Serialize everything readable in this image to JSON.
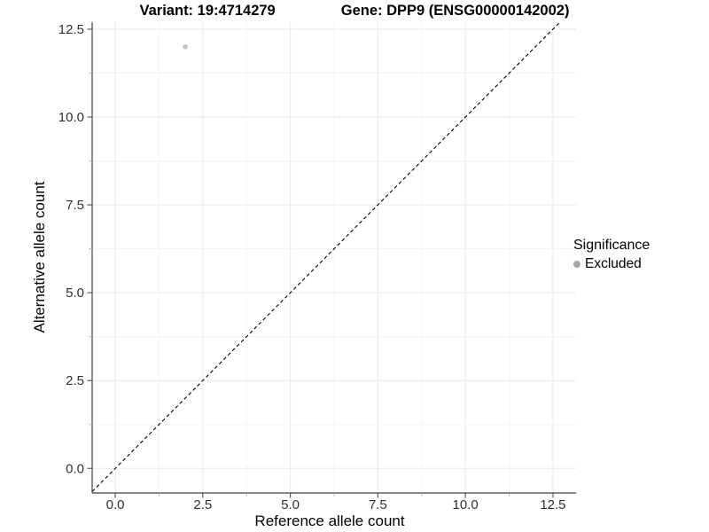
{
  "figure": {
    "title_left": "Variant: 19:4714279",
    "title_right": "Gene: DPP9 (ENSG00000142002)"
  },
  "chart_data": {
    "type": "scatter",
    "title": "Variant: 19:4714279   Gene: DPP9 (ENSG00000142002)",
    "xlabel": "Reference allele count",
    "ylabel": "Alternative allele count",
    "xlim": [
      -0.66,
      13.16
    ],
    "ylim": [
      -0.7,
      12.7
    ],
    "x_major_ticks": [
      0,
      2.5,
      5,
      7.5,
      10,
      12.5
    ],
    "x_tick_labels": [
      "0.0",
      "2.5",
      "5.0",
      "7.5",
      "10.0",
      "12.5"
    ],
    "y_major_ticks": [
      0,
      2.5,
      5,
      7.5,
      10,
      12.5
    ],
    "y_tick_labels": [
      "0.0",
      "2.5",
      "5.0",
      "7.5",
      "10.0",
      "12.5"
    ],
    "x_minor_ticks": [
      1.25,
      3.75,
      6.25,
      8.75,
      11.25
    ],
    "y_minor_ticks": [
      1.25,
      3.75,
      6.25,
      8.75,
      11.25
    ],
    "grid": true,
    "reference_line": {
      "type": "identity",
      "equation": "y = x",
      "style": "dashed"
    },
    "series": [
      {
        "name": "Excluded",
        "points": [
          {
            "x": 2,
            "y": 12
          }
        ]
      }
    ],
    "legend": {
      "title": "Significance",
      "position": "right",
      "items": [
        {
          "label": "Excluded"
        }
      ]
    }
  },
  "colors": {
    "background": "#ffffff",
    "axis_line": "#3f3f3f",
    "grid_major": "#e8e8e8",
    "grid_minor": "#f3f3f3",
    "tick_major": "#4d4d4d",
    "tick_minor": "#b0b0b0",
    "tick_label": "#303030",
    "dashed_line": "#000000",
    "point_fill": "#c4c4c4",
    "legend_dot": "#a6a6a6"
  }
}
